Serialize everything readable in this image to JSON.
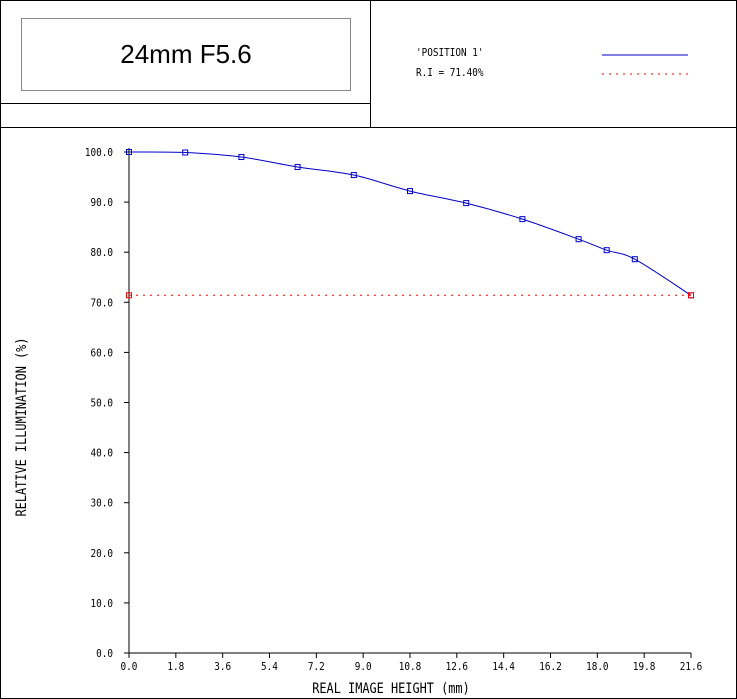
{
  "header": {
    "title": "24mm F5.6",
    "legend": [
      {
        "label": "'POSITION 1'",
        "color": "#0000cc",
        "style": "solid"
      },
      {
        "label": "R.I = 71.40%",
        "color": "#ff0000",
        "style": "dotted"
      }
    ]
  },
  "chart_data": {
    "type": "line",
    "title": "24mm F5.6",
    "xlabel": "REAL IMAGE HEIGHT (mm)",
    "ylabel": "RELATIVE ILLUMINATION (%)",
    "xlim": [
      0.0,
      21.6
    ],
    "ylim": [
      0.0,
      100.0
    ],
    "x_ticks": [
      "0.0",
      "1.8",
      "3.6",
      "5.4",
      "7.2",
      "9.0",
      "10.8",
      "12.6",
      "14.4",
      "16.2",
      "18.0",
      "19.8",
      "21.6"
    ],
    "y_ticks": [
      "0.0",
      "10.0",
      "20.0",
      "30.0",
      "40.0",
      "50.0",
      "60.0",
      "70.0",
      "80.0",
      "90.0",
      "100.0"
    ],
    "series": [
      {
        "name": "'POSITION 1'",
        "color": "#0000cc",
        "x": [
          0.0,
          2.16,
          4.32,
          6.48,
          8.64,
          10.8,
          12.96,
          15.12,
          17.28,
          18.36,
          19.44,
          21.6
        ],
        "y": [
          100.0,
          99.9,
          99.0,
          97.0,
          95.4,
          92.2,
          89.8,
          86.6,
          82.6,
          80.4,
          78.6,
          71.4
        ]
      },
      {
        "name": "R.I = 71.40%",
        "color": "#ff0000",
        "style": "dotted",
        "x": [
          0.0,
          21.6
        ],
        "y": [
          71.4,
          71.4
        ]
      }
    ]
  }
}
